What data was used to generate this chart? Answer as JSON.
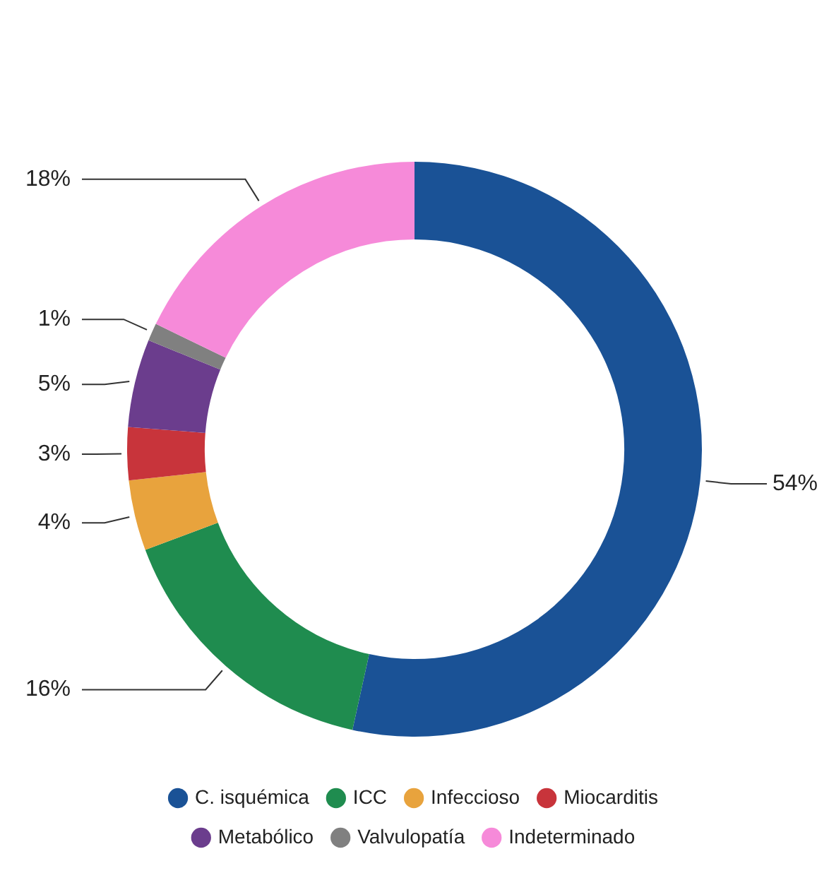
{
  "chart_data": {
    "type": "donut",
    "categories": [
      "C. isquémica",
      "ICC",
      "Infeccioso",
      "Miocarditis",
      "Metabólico",
      "Valvulopatía",
      "Indeterminado"
    ],
    "values": [
      54,
      16,
      4,
      3,
      5,
      1,
      18
    ],
    "colors": [
      "#1a5296",
      "#1f8c4f",
      "#e8a33d",
      "#c8343b",
      "#6b3d8d",
      "#808080",
      "#f68ad9"
    ],
    "value_labels": [
      "54%",
      "16%",
      "4%",
      "3%",
      "5%",
      "1%",
      "18%"
    ],
    "legend": "bottom"
  }
}
